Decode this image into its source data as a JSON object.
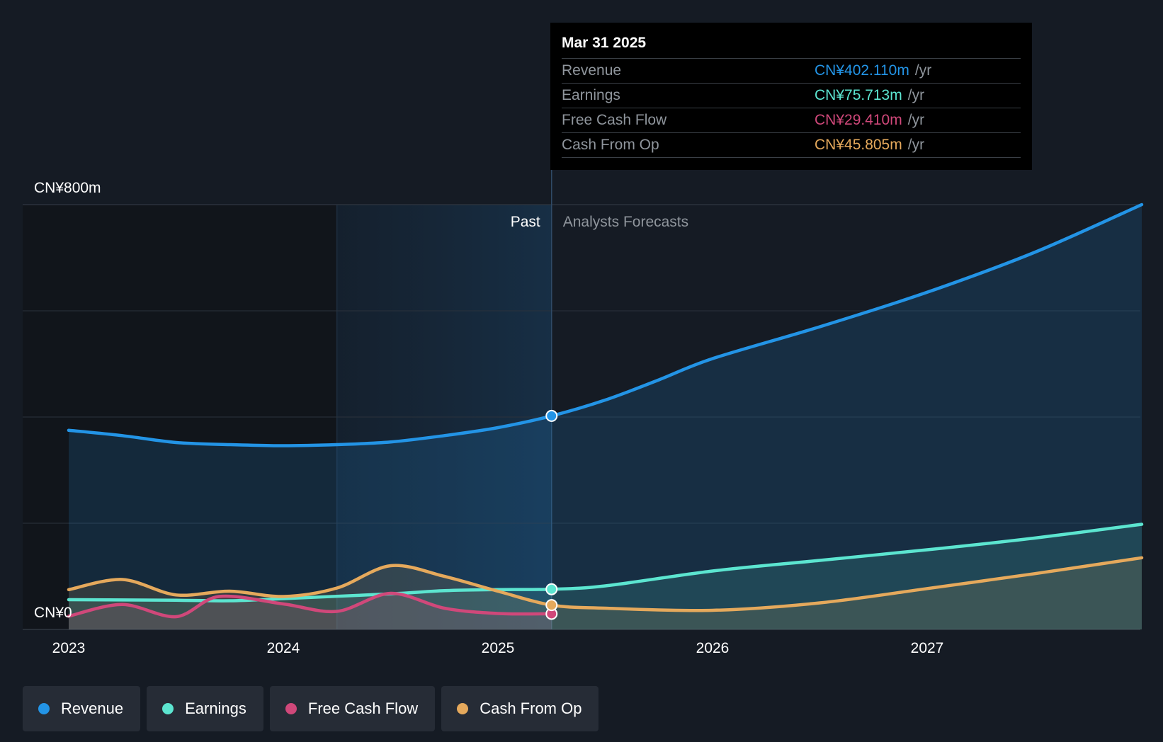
{
  "chart_data": {
    "type": "line",
    "currency_unit": "CN¥ millions",
    "y_axis": {
      "min": 0,
      "max": 800,
      "top_label": "CN¥800m",
      "bottom_label": "CN¥0"
    },
    "x_axis": {
      "tick_labels": [
        "2023",
        "2024",
        "2025",
        "2026",
        "2027"
      ],
      "ticks": [
        2023.0,
        2024.0,
        2025.0,
        2026.0,
        2027.0
      ]
    },
    "x_range": [
      2022.79,
      2028.0
    ],
    "divider_x": 2025.25,
    "highlight_start_x": 2024.25,
    "regions": {
      "past": "Past",
      "forecast": "Analysts Forecasts"
    },
    "series": [
      {
        "name": "Revenue",
        "color": "#2394e6",
        "fill": true,
        "points": [
          [
            2023.0,
            375
          ],
          [
            2023.25,
            365
          ],
          [
            2023.5,
            352
          ],
          [
            2023.75,
            348
          ],
          [
            2024.0,
            346
          ],
          [
            2024.25,
            348
          ],
          [
            2024.5,
            353
          ],
          [
            2024.75,
            365
          ],
          [
            2025.0,
            380
          ],
          [
            2025.25,
            402.11
          ],
          [
            2025.5,
            432
          ],
          [
            2025.75,
            470
          ],
          [
            2026.0,
            510
          ],
          [
            2026.5,
            570
          ],
          [
            2027.0,
            635
          ],
          [
            2027.5,
            710
          ],
          [
            2028.0,
            800
          ]
        ]
      },
      {
        "name": "Earnings",
        "color": "#5ce5d0",
        "fill": true,
        "points": [
          [
            2023.0,
            56
          ],
          [
            2023.5,
            55
          ],
          [
            2023.75,
            54
          ],
          [
            2024.0,
            58
          ],
          [
            2024.5,
            67
          ],
          [
            2024.75,
            73
          ],
          [
            2025.0,
            75
          ],
          [
            2025.25,
            75.713
          ],
          [
            2025.5,
            82
          ],
          [
            2026.0,
            110
          ],
          [
            2026.5,
            130
          ],
          [
            2027.0,
            150
          ],
          [
            2027.5,
            172
          ],
          [
            2028.0,
            198
          ]
        ]
      },
      {
        "name": "Free Cash Flow",
        "color": "#d0487a",
        "fill": true,
        "points": [
          [
            2023.0,
            25
          ],
          [
            2023.25,
            47
          ],
          [
            2023.5,
            24
          ],
          [
            2023.7,
            62
          ],
          [
            2024.0,
            48
          ],
          [
            2024.25,
            34
          ],
          [
            2024.5,
            68
          ],
          [
            2024.75,
            40
          ],
          [
            2025.0,
            30
          ],
          [
            2025.25,
            29.41
          ]
        ]
      },
      {
        "name": "Cash From Op",
        "color": "#e5a95c",
        "fill": true,
        "points": [
          [
            2023.0,
            75
          ],
          [
            2023.25,
            94
          ],
          [
            2023.5,
            65
          ],
          [
            2023.75,
            72
          ],
          [
            2024.0,
            62
          ],
          [
            2024.25,
            78
          ],
          [
            2024.5,
            120
          ],
          [
            2024.75,
            100
          ],
          [
            2025.0,
            72
          ],
          [
            2025.25,
            45.805
          ],
          [
            2025.5,
            40
          ],
          [
            2026.0,
            36
          ],
          [
            2026.5,
            50
          ],
          [
            2027.0,
            77
          ],
          [
            2027.5,
            105
          ],
          [
            2028.0,
            135
          ]
        ]
      }
    ],
    "tooltip": {
      "date": "Mar 31 2025",
      "rows": [
        {
          "label": "Revenue",
          "value": "CN¥402.110m",
          "unit": "/yr",
          "color": "#2394e6"
        },
        {
          "label": "Earnings",
          "value": "CN¥75.713m",
          "unit": "/yr",
          "color": "#5ce5d0"
        },
        {
          "label": "Free Cash Flow",
          "value": "CN¥29.410m",
          "unit": "/yr",
          "color": "#d0487a"
        },
        {
          "label": "Cash From Op",
          "value": "CN¥45.805m",
          "unit": "/yr",
          "color": "#e5a95c"
        }
      ]
    },
    "legend": [
      {
        "label": "Revenue",
        "color": "#2394e6"
      },
      {
        "label": "Earnings",
        "color": "#5ce5d0"
      },
      {
        "label": "Free Cash Flow",
        "color": "#d0487a"
      },
      {
        "label": "Cash From Op",
        "color": "#e5a95c"
      }
    ]
  }
}
